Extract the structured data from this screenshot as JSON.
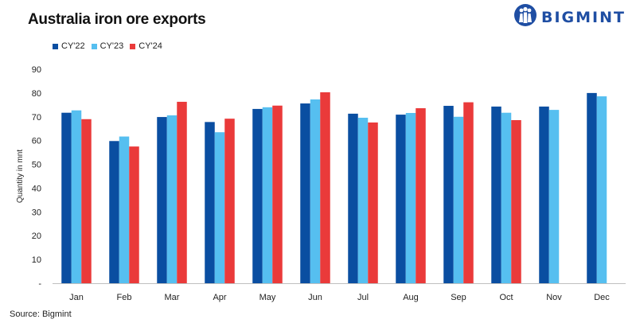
{
  "brand": {
    "name": "BIGMINT"
  },
  "colors": {
    "cy22": "#0a4ea1",
    "cy23": "#56bff0",
    "cy24": "#ea3a3a",
    "logo": "#1f4ea3"
  },
  "source": "Source: Bigmint",
  "chart_data": {
    "type": "bar",
    "title": "Australia iron ore exports",
    "xlabel": "",
    "ylabel": "Quantity in mnt",
    "ylim": [
      0,
      90
    ],
    "yticks": [
      0,
      10,
      20,
      30,
      40,
      50,
      60,
      70,
      80,
      90
    ],
    "ytick_labels": [
      "-",
      "10",
      "20",
      "30",
      "40",
      "50",
      "60",
      "70",
      "80",
      "90"
    ],
    "categories": [
      "Jan",
      "Feb",
      "Mar",
      "Apr",
      "May",
      "Jun",
      "Jul",
      "Aug",
      "Sep",
      "Oct",
      "Nov",
      "Dec"
    ],
    "series": [
      {
        "name": "CY'22",
        "color": "#0a4ea1",
        "values": [
          71.7,
          59.8,
          69.9,
          67.8,
          73.3,
          75.6,
          71.3,
          70.9,
          74.6,
          74.3,
          74.3,
          80.0
        ]
      },
      {
        "name": "CY'23",
        "color": "#56bff0",
        "values": [
          72.7,
          61.7,
          70.6,
          63.5,
          74.0,
          77.3,
          69.6,
          71.6,
          70.0,
          71.7,
          72.9,
          78.6
        ]
      },
      {
        "name": "CY'24",
        "color": "#ea3a3a",
        "values": [
          69.0,
          57.5,
          76.3,
          69.2,
          74.7,
          80.3,
          67.6,
          73.6,
          76.1,
          68.6,
          null,
          null
        ]
      }
    ],
    "legend_position": "top-left",
    "grid": false
  }
}
